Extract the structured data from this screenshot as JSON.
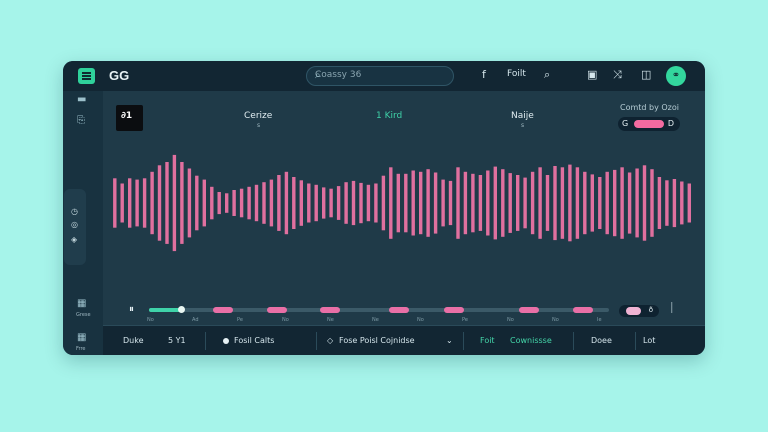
{
  "app": {
    "title": "GG"
  },
  "search": {
    "placeholder": "Coassy 36"
  },
  "topbar": {
    "facebook_label": "f",
    "text_label": "Foilt"
  },
  "sidebar": {
    "label_a": "Grese",
    "label_b": "Frre"
  },
  "thumbnail": {
    "text": "∂1"
  },
  "header": {
    "left_title": "Cerize",
    "left_sub": "s",
    "mid_title": "1 Kird",
    "right_title": "Naije",
    "right_sub": "s",
    "corner_label": "Comtd by Ozoi",
    "toggle_left": "G",
    "toggle_right": "D"
  },
  "waveform": {
    "color": "#e0709f",
    "levels": [
      0.38,
      0.3,
      0.38,
      0.36,
      0.38,
      0.48,
      0.58,
      0.63,
      0.74,
      0.63,
      0.53,
      0.42,
      0.36,
      0.25,
      0.17,
      0.15,
      0.2,
      0.22,
      0.25,
      0.28,
      0.32,
      0.36,
      0.43,
      0.48,
      0.4,
      0.35,
      0.3,
      0.28,
      0.24,
      0.22,
      0.26,
      0.32,
      0.34,
      0.31,
      0.28,
      0.3,
      0.42,
      0.55,
      0.45,
      0.45,
      0.5,
      0.48,
      0.52,
      0.47,
      0.36,
      0.34,
      0.55,
      0.48,
      0.45,
      0.43,
      0.5,
      0.56,
      0.52,
      0.46,
      0.43,
      0.39,
      0.48,
      0.55,
      0.43,
      0.57,
      0.55,
      0.59,
      0.55,
      0.48,
      0.44,
      0.4,
      0.48,
      0.51,
      0.55,
      0.47,
      0.53,
      0.58,
      0.52,
      0.4,
      0.35,
      0.37,
      0.33,
      0.3
    ]
  },
  "player": {
    "play_icon": "⏸",
    "progress": 0.07,
    "ticks": [
      "No",
      "Ad",
      "Pe",
      "No",
      "Ne",
      "Ne",
      "No",
      "Pe",
      "No",
      "No",
      "Ie"
    ],
    "volume_label": "ð",
    "end_icon": "⏐"
  },
  "bottombar": {
    "item1": "Duke",
    "item2": "5 Y1",
    "item3": "Fosil Calts",
    "item4": "Fose Poisl Cojnidse",
    "item4_icon": "◇",
    "item5": "Foit",
    "item6": "Cownissse",
    "item7": "Doee",
    "item8": "Lot"
  }
}
